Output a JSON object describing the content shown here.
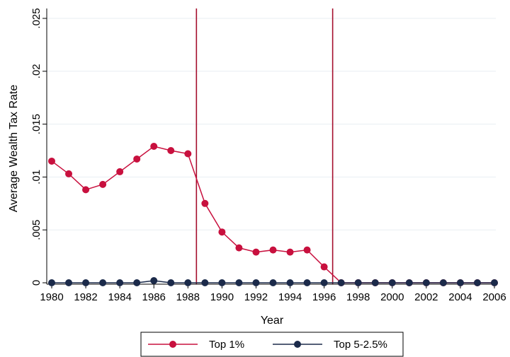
{
  "chart_data": {
    "type": "line",
    "xlabel": "Year",
    "ylabel": "Average Wealth Tax Rate",
    "xlim": [
      1980,
      2006
    ],
    "ylim": [
      0,
      0.025
    ],
    "x_ticks": [
      1980,
      1982,
      1984,
      1986,
      1988,
      1990,
      1992,
      1994,
      1996,
      1998,
      2000,
      2002,
      2004,
      2006
    ],
    "x_tick_labels": [
      "1980",
      "1982",
      "1984",
      "1986",
      "1988",
      "1990",
      "1992",
      "1994",
      "1996",
      "1998",
      "2000",
      "2002",
      "2004",
      "2006"
    ],
    "y_ticks": [
      0,
      0.005,
      0.01,
      0.015,
      0.02,
      0.025
    ],
    "y_tick_labels": [
      "0",
      ".005",
      ".01",
      ".015",
      ".02",
      ".025"
    ],
    "x": [
      1980,
      1981,
      1982,
      1983,
      1984,
      1985,
      1986,
      1987,
      1988,
      1989,
      1990,
      1991,
      1992,
      1993,
      1994,
      1995,
      1996,
      1997,
      1998,
      1999,
      2000,
      2001,
      2002,
      2003,
      2004,
      2005,
      2006
    ],
    "series": [
      {
        "name": "Top 1%",
        "color": "#c8103e",
        "values": [
          0.0115,
          0.0103,
          0.0088,
          0.0093,
          0.0105,
          0.0117,
          0.0129,
          0.0125,
          0.0122,
          0.0075,
          0.0048,
          0.0033,
          0.0029,
          0.0031,
          0.0029,
          0.0031,
          0.0015,
          0.0,
          0.0,
          0.0,
          0.0,
          0.0,
          0.0,
          0.0,
          0.0,
          0.0,
          0.0
        ]
      },
      {
        "name": "Top 5-2.5%",
        "color": "#1b2a4a",
        "values": [
          0.0,
          0.0,
          0.0,
          0.0,
          0.0,
          0.0,
          0.0002,
          0.0,
          0.0,
          0.0,
          0.0,
          0.0,
          0.0,
          0.0,
          0.0,
          0.0,
          0.0,
          0.0,
          0.0,
          0.0,
          0.0,
          0.0,
          0.0,
          0.0,
          0.0,
          0.0,
          0.0
        ]
      }
    ],
    "vertical_lines": [
      {
        "x": 1988.5,
        "color": "#a50f2d"
      },
      {
        "x": 1996.5,
        "color": "#a50f2d"
      }
    ],
    "grid": "horizontal",
    "legend_position": "bottom"
  }
}
